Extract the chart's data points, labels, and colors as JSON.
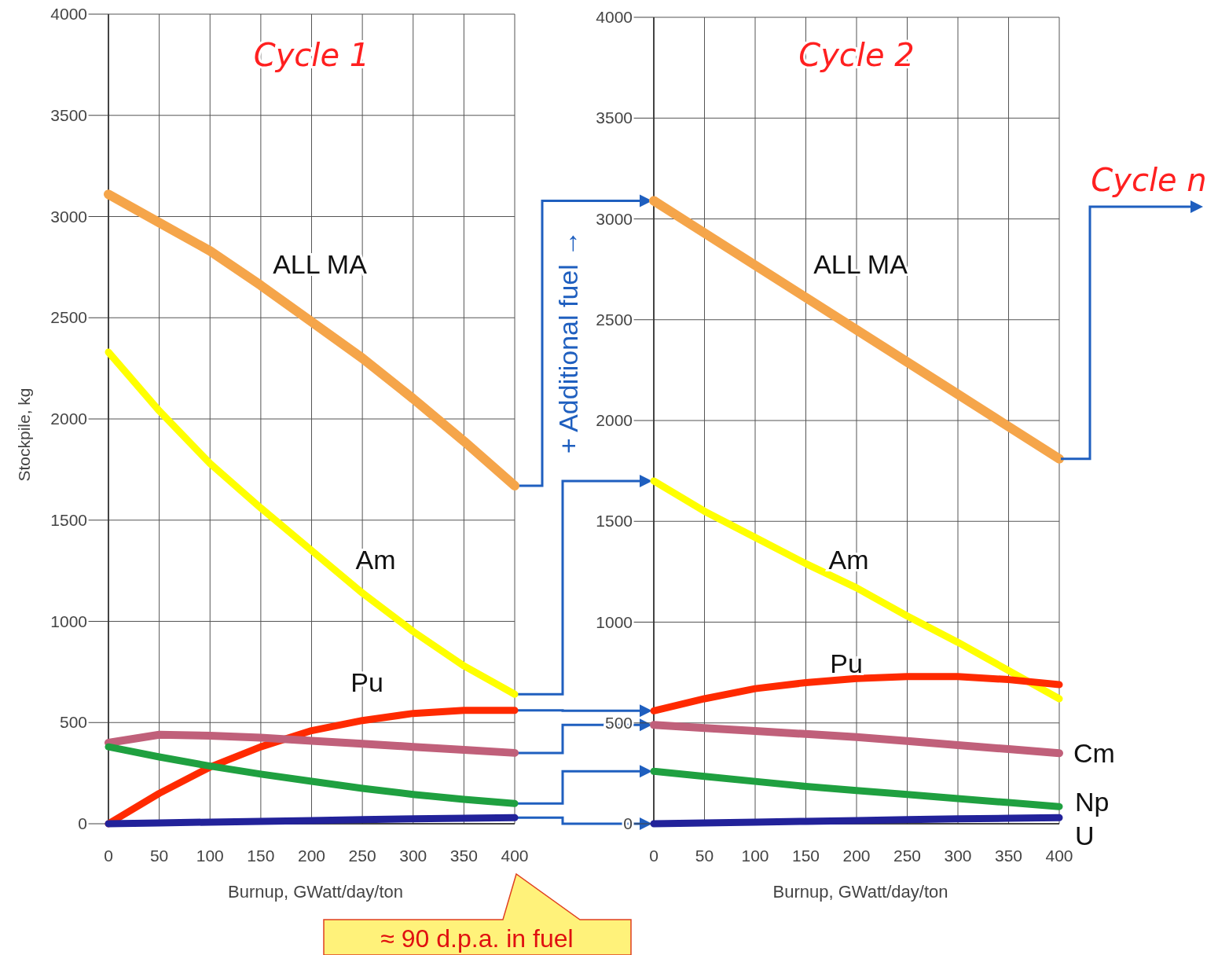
{
  "chart_data": [
    {
      "type": "line",
      "title": "Cycle 1",
      "xlabel": "Burnup, GWatt/day/ton",
      "ylabel": "Stockpile, kg",
      "x": [
        0,
        50,
        100,
        150,
        200,
        250,
        300,
        350,
        400
      ],
      "xlim": [
        0,
        400
      ],
      "ylim": [
        0,
        4000
      ],
      "xticks": [
        0,
        50,
        100,
        150,
        200,
        250,
        300,
        350,
        400
      ],
      "yticks": [
        0,
        500,
        1000,
        1500,
        2000,
        2500,
        3000,
        3500,
        4000
      ],
      "grid": true,
      "annotations": [
        "≈ 90 d.p.a. in fuel"
      ],
      "series": [
        {
          "name": "ALL MA",
          "color": "#f5a54a",
          "values": [
            3110,
            2970,
            2830,
            2660,
            2480,
            2300,
            2100,
            1890,
            1670
          ]
        },
        {
          "name": "Am",
          "color": "#ffff00",
          "values": [
            2330,
            2040,
            1780,
            1560,
            1350,
            1140,
            950,
            780,
            640
          ]
        },
        {
          "name": "Pu",
          "color": "#ff2a00",
          "values": [
            0,
            150,
            280,
            380,
            460,
            510,
            545,
            560,
            560
          ]
        },
        {
          "color": "#c0607a",
          "values": [
            400,
            440,
            435,
            425,
            410,
            395,
            380,
            365,
            350
          ]
        },
        {
          "color": "#1fa040",
          "values": [
            380,
            330,
            285,
            245,
            210,
            175,
            145,
            120,
            100
          ]
        },
        {
          "color": "#22229a",
          "values": [
            0,
            4,
            8,
            12,
            16,
            20,
            24,
            27,
            30
          ]
        }
      ]
    },
    {
      "type": "line",
      "title": "Cycle 2",
      "xlabel": "Burnup, GWatt/day/ton",
      "x": [
        0,
        50,
        100,
        150,
        200,
        250,
        300,
        350,
        400
      ],
      "xlim": [
        0,
        400
      ],
      "ylim": [
        0,
        4000
      ],
      "xticks": [
        0,
        50,
        100,
        150,
        200,
        250,
        300,
        350,
        400
      ],
      "yticks": [
        0,
        500,
        1000,
        1500,
        2000,
        2500,
        3000,
        3500,
        4000
      ],
      "grid": true,
      "annotations": [
        "+ Additional fuel →",
        "Cycle n"
      ],
      "series": [
        {
          "name": "ALL MA",
          "color": "#f5a54a",
          "values": [
            3090,
            2930,
            2770,
            2610,
            2450,
            2290,
            2130,
            1970,
            1810
          ]
        },
        {
          "name": "Am",
          "color": "#ffff00",
          "values": [
            1700,
            1550,
            1420,
            1290,
            1170,
            1030,
            900,
            760,
            620
          ]
        },
        {
          "name": "Pu",
          "color": "#ff2a00",
          "values": [
            560,
            620,
            670,
            700,
            720,
            730,
            730,
            715,
            690
          ]
        },
        {
          "name": "Cm",
          "color": "#c0607a",
          "values": [
            490,
            475,
            460,
            445,
            430,
            410,
            390,
            370,
            350
          ]
        },
        {
          "name": "Np",
          "color": "#1fa040",
          "values": [
            260,
            235,
            210,
            185,
            165,
            145,
            125,
            105,
            85
          ]
        },
        {
          "name": "U",
          "color": "#22229a",
          "values": [
            0,
            4,
            8,
            12,
            16,
            20,
            24,
            27,
            30
          ]
        }
      ]
    }
  ]
}
